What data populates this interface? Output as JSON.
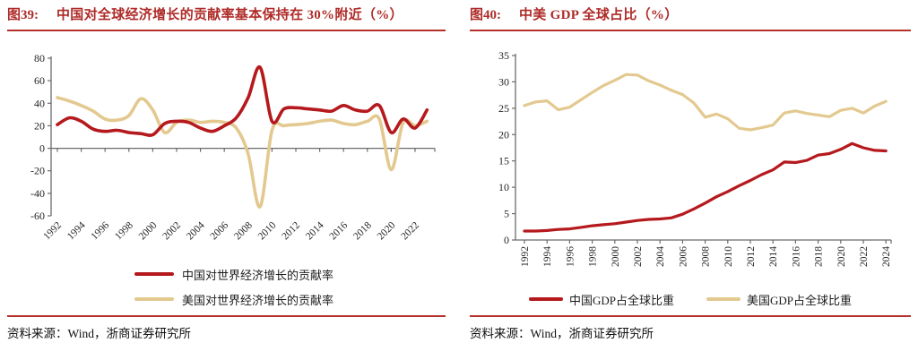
{
  "palette": {
    "title_red": "#ae2b28",
    "rule_red": "#b5322c",
    "china_line_red": "#b5191d",
    "us_line_tan": "#e3c98f",
    "axis_gray": "#6b6b6b",
    "label_dark": "#262626"
  },
  "figures": [
    {
      "tag": "图39:",
      "source": "资料来源：Wind，浙商证券研究所"
    },
    {
      "tag": "图40:",
      "source": "资料来源：Wind，浙商证券研究所"
    }
  ],
  "chart_data": [
    {
      "type": "line",
      "title": "中国对全球经济增长的贡献率基本保持在 30%附近（%）",
      "xlabel": "",
      "ylabel": "",
      "ylim": [
        -60,
        80
      ],
      "ytick_step": 20,
      "grid": false,
      "smooth": true,
      "legend_position": "bottom-stacked",
      "xtick_label_angle": -45,
      "xtick_labels": [
        "1992",
        "1994",
        "1996",
        "1998",
        "2000",
        "2002",
        "2004",
        "2006",
        "2008",
        "2010",
        "2012",
        "2014",
        "2016",
        "2018",
        "2020",
        "2022"
      ],
      "x": [
        1992,
        1993,
        1994,
        1995,
        1996,
        1997,
        1998,
        1999,
        2000,
        2001,
        2002,
        2003,
        2004,
        2005,
        2006,
        2007,
        2008,
        2009,
        2010,
        2011,
        2012,
        2013,
        2014,
        2015,
        2016,
        2017,
        2018,
        2019,
        2020,
        2021,
        2022,
        2023
      ],
      "series": [
        {
          "name": "中国对世界经济增长的贡献率",
          "color": "#b5191d",
          "values": [
            21,
            27,
            24,
            17,
            15,
            16,
            14,
            13,
            12,
            22,
            24,
            23,
            18,
            15,
            20,
            27,
            45,
            72,
            24,
            35,
            36,
            35,
            34,
            33,
            38,
            34,
            33,
            38,
            14,
            26,
            18,
            34
          ]
        },
        {
          "name": "美国对世界经济增长的贡献率",
          "color": "#e3c98f",
          "values": [
            45,
            42,
            38,
            33,
            26,
            25,
            29,
            44,
            34,
            14,
            23,
            25,
            23,
            24,
            23,
            18,
            -5,
            -52,
            16,
            20,
            21,
            22,
            24,
            25,
            22,
            21,
            24,
            26,
            -19,
            23,
            20,
            24
          ]
        }
      ]
    },
    {
      "type": "line",
      "title": "中美 GDP 全球占比（%）",
      "xlabel": "",
      "ylabel": "",
      "ylim": [
        0,
        35
      ],
      "ytick_step": 5,
      "grid": false,
      "smooth": false,
      "legend_position": "bottom-horizontal",
      "xtick_label_angle": -90,
      "xtick_labels": [
        "1992",
        "1994",
        "1996",
        "1998",
        "2000",
        "2002",
        "2004",
        "2006",
        "2008",
        "2010",
        "2012",
        "2014",
        "2016",
        "2018",
        "2020",
        "2022",
        "2024"
      ],
      "x": [
        1992,
        1993,
        1994,
        1995,
        1996,
        1997,
        1998,
        1999,
        2000,
        2001,
        2002,
        2003,
        2004,
        2005,
        2006,
        2007,
        2008,
        2009,
        2010,
        2011,
        2012,
        2013,
        2014,
        2015,
        2016,
        2017,
        2018,
        2019,
        2020,
        2021,
        2022,
        2023,
        2024
      ],
      "series": [
        {
          "name": "中国GDP占全球比重",
          "color": "#b5191d",
          "values": [
            1.7,
            1.7,
            1.8,
            2.0,
            2.1,
            2.4,
            2.7,
            2.9,
            3.1,
            3.4,
            3.7,
            3.9,
            4.0,
            4.2,
            4.9,
            5.9,
            7.0,
            8.2,
            9.2,
            10.3,
            11.3,
            12.4,
            13.3,
            14.8,
            14.7,
            15.1,
            16.1,
            16.4,
            17.2,
            18.3,
            17.5,
            17.0,
            16.9
          ]
        },
        {
          "name": "美国GDP占全球比重",
          "color": "#e3c98f",
          "values": [
            25.5,
            26.2,
            26.4,
            24.7,
            25.2,
            26.6,
            28.0,
            29.3,
            30.3,
            31.4,
            31.3,
            30.2,
            29.4,
            28.4,
            27.6,
            26.0,
            23.3,
            23.9,
            23.0,
            21.2,
            20.9,
            21.3,
            21.8,
            24.1,
            24.5,
            24.0,
            23.7,
            23.4,
            24.6,
            25.0,
            24.1,
            25.4,
            26.3
          ]
        }
      ]
    }
  ]
}
